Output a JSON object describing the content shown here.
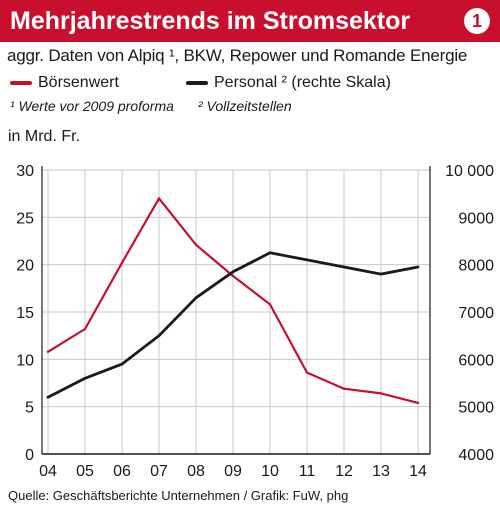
{
  "header": {
    "title": "Mehrjahrestrends im Stromsektor",
    "badge": "1"
  },
  "subtitle": "aggr. Daten von Alpiq ¹, BKW, Repower und Romande Energie",
  "legend": {
    "boersenwert": "Börsenwert",
    "personal": "Personal ² (rechte Skala)"
  },
  "notes": {
    "n1": "¹ Werte vor 2009 proforma",
    "n2": "² Vollzeitstellen"
  },
  "unit_label": "in Mrd. Fr.",
  "source": "Quelle: Geschäftsberichte Unternehmen / Grafik: FuW, phg",
  "colors": {
    "header": "#c8102e",
    "boersenwert": "#c8102e",
    "personal": "#1a1a1a",
    "grid": "#c8c8c8"
  },
  "chart_data": {
    "type": "line",
    "categories": [
      "04",
      "05",
      "06",
      "07",
      "08",
      "09",
      "10",
      "11",
      "12",
      "13",
      "14"
    ],
    "series": [
      {
        "name": "Börsenwert",
        "axis": "left",
        "values": [
          10.8,
          13.2,
          20.2,
          27.0,
          22.1,
          18.8,
          15.8,
          8.6,
          6.9,
          6.4,
          5.4
        ]
      },
      {
        "name": "Personal ² (rechte Skala)",
        "axis": "right",
        "values": [
          5200,
          5600,
          5900,
          6500,
          7300,
          7850,
          8250,
          8100,
          7950,
          7800,
          7950
        ]
      }
    ],
    "y_left": {
      "min": 0,
      "max": 30,
      "ticks": [
        "0",
        "5",
        "10",
        "15",
        "20",
        "25",
        "30"
      ],
      "values": [
        0,
        5,
        10,
        15,
        20,
        25,
        30
      ]
    },
    "y_right": {
      "min": 4000,
      "max": 10000,
      "ticks": [
        "4000",
        "5000",
        "6000",
        "7000",
        "8000",
        "9000",
        "10 000"
      ],
      "values": [
        4000,
        5000,
        6000,
        7000,
        8000,
        9000,
        10000
      ]
    },
    "grid": true
  }
}
